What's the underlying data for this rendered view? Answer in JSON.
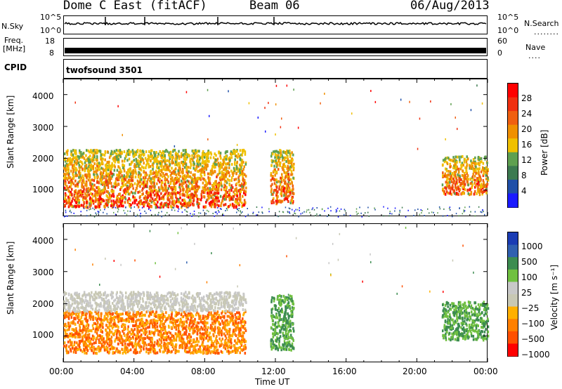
{
  "header": {
    "station": "Dome C East (fitACF)",
    "beam": "Beam 06",
    "date": "06/Aug/2013"
  },
  "nsky_panel": {
    "left_label": "N.Sky",
    "left_top": "10^5",
    "left_bottom": "10^0",
    "right_label": "N.Search",
    "right_top": "10^5",
    "right_bottom": "10^0"
  },
  "freq_panel": {
    "left_label_1": "Freq.",
    "left_label_2": "[MHz]",
    "left_top": "18",
    "left_bottom": "8",
    "right_label": "Nave",
    "right_top": "60",
    "right_bottom": "0"
  },
  "cpid_panel": {
    "label": "CPID",
    "value": "twofsound 3501"
  },
  "colors": {
    "power_scale": [
      "#1a1aff",
      "#2050a8",
      "#3c7a50",
      "#5fa050",
      "#f0c000",
      "#f09000",
      "#f06010",
      "#f03010",
      "#ff0000"
    ],
    "velocity_scale": [
      "#ff0000",
      "#ff5000",
      "#ff8000",
      "#ffb000",
      "#c8c8b4",
      "#c8c8c8",
      "#70c040",
      "#3c8c50",
      "#3060b0",
      "#1a3cb4"
    ]
  },
  "chart_data": [
    {
      "type": "heatmap",
      "name": "Power",
      "ylabel": "Slant Range [km]",
      "yticks": [
        "1000",
        "2000",
        "3000",
        "4000"
      ],
      "ylim": [
        180,
        4500
      ],
      "xlim": [
        "00:00",
        "24:00"
      ],
      "colorbar": {
        "label": "Power [dB]",
        "ticks": [
          "4",
          "8",
          "12",
          "16",
          "20",
          "24",
          "28"
        ],
        "range": [
          0,
          32
        ]
      },
      "echo_regions": [
        {
          "t_start": 0.0,
          "t_end": 10.3,
          "range_low_km": 500,
          "range_high_km": 2300,
          "typical_power_db": 24
        },
        {
          "t_start": 11.7,
          "t_end": 13.0,
          "range_low_km": 600,
          "range_high_km": 2300,
          "typical_power_db": 22
        },
        {
          "t_start": 21.4,
          "t_end": 24.0,
          "range_low_km": 900,
          "range_high_km": 2100,
          "typical_power_db": 20
        },
        {
          "t_start": 0.0,
          "t_end": 24.0,
          "range_low_km": 180,
          "range_high_km": 500,
          "typical_power_db": 8
        }
      ]
    },
    {
      "type": "heatmap",
      "name": "Velocity",
      "ylabel": "Slant Range [km]",
      "yticks": [
        "1000",
        "2000",
        "3000",
        "4000"
      ],
      "ylim": [
        180,
        4500
      ],
      "xlabel": "Time UT",
      "xticks": [
        "00:00",
        "04:00",
        "08:00",
        "12:00",
        "16:00",
        "20:00",
        "00:00"
      ],
      "colorbar": {
        "label": "Velocity [m s⁻¹]",
        "ticks": [
          "1000",
          "500",
          "100",
          "25",
          "−25",
          "−100",
          "−500",
          "−1000"
        ]
      },
      "echo_regions": [
        {
          "t_start": 0.0,
          "t_end": 10.3,
          "range_low_km": 500,
          "range_high_km": 1800,
          "typical_velocity": -100
        },
        {
          "t_start": 0.0,
          "t_end": 10.3,
          "range_low_km": 1800,
          "range_high_km": 2400,
          "typical_velocity": 0
        },
        {
          "t_start": 11.7,
          "t_end": 13.0,
          "range_low_km": 600,
          "range_high_km": 2300,
          "typical_velocity": 100
        },
        {
          "t_start": 21.4,
          "t_end": 24.0,
          "range_low_km": 900,
          "range_high_km": 2100,
          "typical_velocity": 100
        }
      ]
    }
  ]
}
